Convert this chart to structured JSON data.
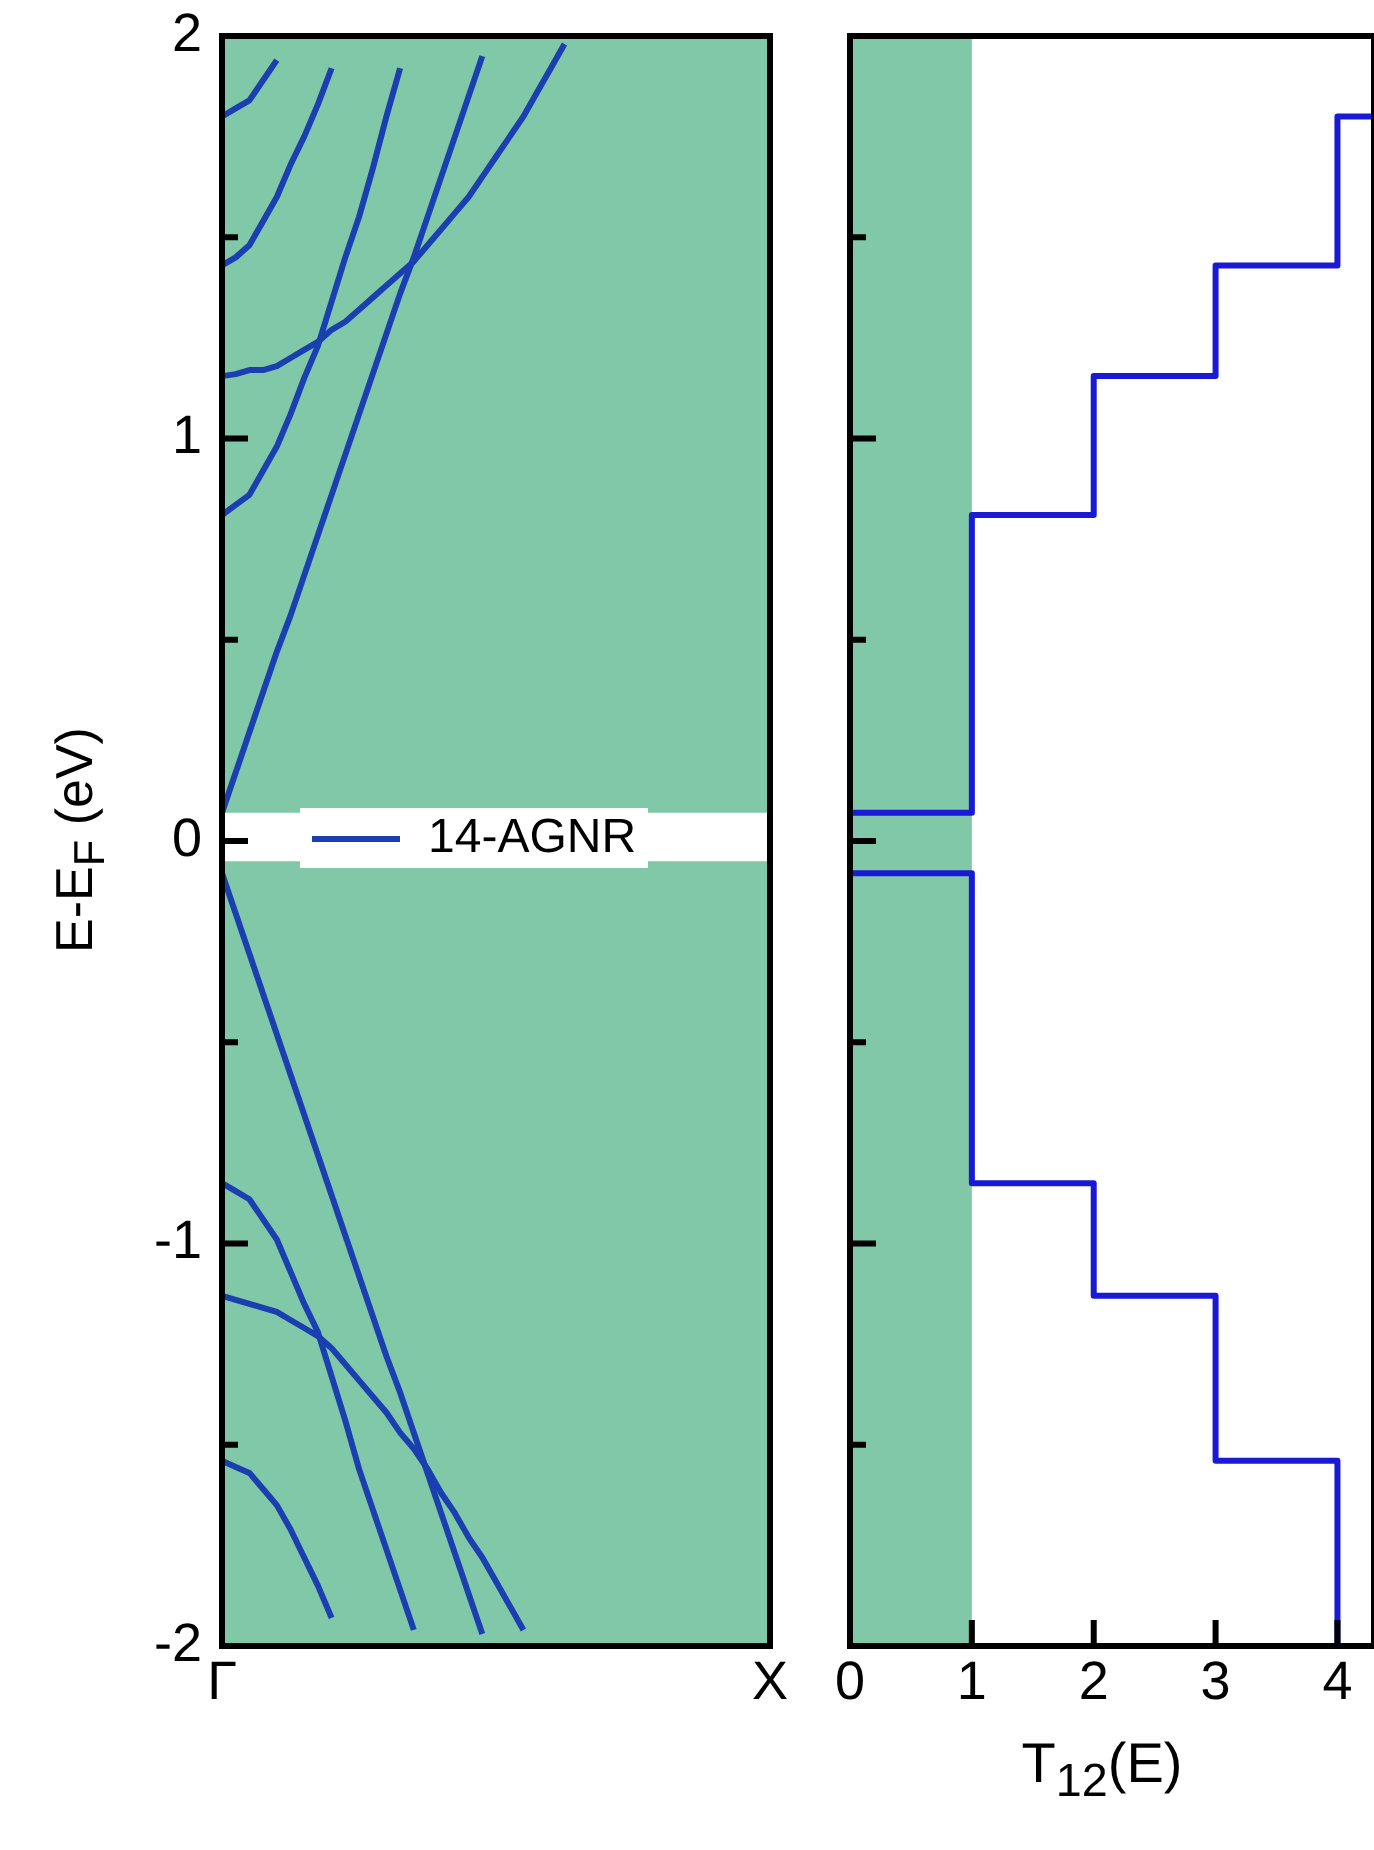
{
  "chart_data": [
    {
      "type": "line",
      "ylabel": "E-E$_{F}$ (eV)",
      "categories": [
        "Γ",
        null,
        null,
        null,
        null,
        null,
        null,
        null,
        null,
        null,
        null,
        null,
        null,
        null,
        null,
        null,
        null,
        null,
        null,
        null,
        null,
        null,
        null,
        null,
        null,
        null,
        null,
        null,
        null,
        null,
        null,
        null,
        null,
        null,
        null,
        null,
        null,
        null,
        null,
        null,
        "X"
      ],
      "ylim": [
        -2,
        2
      ],
      "yticks": [
        -2,
        {
          "value": -1.5,
          "label": null
        },
        -1,
        {
          "value": -0.5,
          "label": null
        },
        0,
        {
          "value": 0.5,
          "label": null
        },
        1,
        {
          "value": 1.5,
          "label": null
        },
        2
      ],
      "legend": "left",
      "marker": "none",
      "line_style": "solid",
      "bands": [
        {
          "axis": "y",
          "from": 0.07,
          "to": 2,
          "color": "#80c8a8"
        },
        {
          "axis": "y",
          "from": -2,
          "to": -0.05,
          "color": "#80c8a8"
        }
      ],
      "series": [
        {
          "name": "14-AGNR",
          "color": "#1a3fb0",
          "values": [
            0.07,
            0.17,
            0.27,
            0.37,
            0.47,
            0.56,
            0.66,
            0.76,
            0.86,
            0.96,
            1.06,
            1.16,
            1.26,
            1.36,
            1.45,
            1.55,
            1.65,
            1.75,
            1.85,
            1.95,
            null,
            null,
            null,
            null,
            null,
            null,
            null,
            null,
            null,
            null,
            null,
            null,
            null,
            null,
            null,
            null,
            null,
            null,
            null,
            null,
            null
          ]
        },
        {
          "color": "#1a3fb0",
          "values": [
            0.81,
            0.835,
            0.86,
            0.92,
            0.98,
            1.06,
            1.15,
            1.23,
            1.34,
            1.45,
            1.55,
            1.67,
            1.8,
            1.92,
            null,
            null,
            null,
            null,
            null,
            null,
            null,
            null,
            null,
            null,
            null,
            null,
            null,
            null,
            null,
            null,
            null,
            null,
            null,
            null,
            null,
            null,
            null,
            null,
            null,
            null,
            null
          ]
        },
        {
          "color": "#1a3fb0",
          "values": [
            1.155,
            1.16,
            1.17,
            1.17,
            1.18,
            1.2,
            1.22,
            1.24,
            1.27,
            1.29,
            1.32,
            1.35,
            1.38,
            1.41,
            1.44,
            1.48,
            1.52,
            1.56,
            1.6,
            1.65,
            1.7,
            1.75,
            1.8,
            1.86,
            1.92,
            1.98,
            null,
            null,
            null,
            null,
            null,
            null,
            null,
            null,
            null,
            null,
            null,
            null,
            null,
            null,
            null
          ]
        },
        {
          "color": "#1a3fb0",
          "values": [
            1.43,
            1.45,
            1.48,
            1.54,
            1.6,
            1.68,
            1.75,
            1.83,
            1.92,
            null,
            null,
            null,
            null,
            null,
            null,
            null,
            null,
            null,
            null,
            null,
            null,
            null,
            null,
            null,
            null,
            null,
            null,
            null,
            null,
            null,
            null,
            null,
            null,
            null,
            null,
            null,
            null,
            null,
            null,
            null,
            null
          ]
        },
        {
          "color": "#1a3fb0",
          "values": [
            1.8,
            1.82,
            1.84,
            1.89,
            1.94,
            null,
            null,
            null,
            null,
            null,
            null,
            null,
            null,
            null,
            null,
            null,
            null,
            null,
            null,
            null,
            null,
            null,
            null,
            null,
            null,
            null,
            null,
            null,
            null,
            null,
            null,
            null,
            null,
            null,
            null,
            null,
            null,
            null,
            null,
            null,
            null
          ]
        },
        {
          "color": "#1a3fb0",
          "values": [
            -0.08,
            -0.18,
            -0.28,
            -0.38,
            -0.48,
            -0.58,
            -0.68,
            -0.78,
            -0.88,
            -0.98,
            -1.08,
            -1.18,
            -1.28,
            -1.37,
            -1.47,
            -1.57,
            -1.67,
            -1.77,
            -1.87,
            -1.97,
            null,
            null,
            null,
            null,
            null,
            null,
            null,
            null,
            null,
            null,
            null,
            null,
            null,
            null,
            null,
            null,
            null,
            null,
            null,
            null,
            null
          ]
        },
        {
          "color": "#1a3fb0",
          "values": [
            -0.85,
            -0.87,
            -0.89,
            -0.94,
            -0.99,
            -1.07,
            -1.15,
            -1.22,
            -1.33,
            -1.44,
            -1.56,
            -1.66,
            -1.76,
            -1.86,
            -1.96,
            null,
            null,
            null,
            null,
            null,
            null,
            null,
            null,
            null,
            null,
            null,
            null,
            null,
            null,
            null,
            null,
            null,
            null,
            null,
            null,
            null,
            null,
            null,
            null,
            null,
            null
          ]
        },
        {
          "color": "#1a3fb0",
          "values": [
            -1.13,
            -1.14,
            -1.15,
            -1.16,
            -1.17,
            -1.19,
            -1.21,
            -1.23,
            -1.26,
            -1.3,
            -1.34,
            -1.38,
            -1.42,
            -1.47,
            -1.51,
            -1.56,
            -1.62,
            -1.67,
            -1.73,
            -1.78,
            -1.84,
            -1.9,
            -1.96,
            null,
            null,
            null,
            null,
            null,
            null,
            null,
            null,
            null,
            null,
            null,
            null,
            null,
            null,
            null,
            null,
            null,
            null
          ]
        },
        {
          "color": "#1a3fb0",
          "values": [
            -1.54,
            -1.555,
            -1.57,
            -1.61,
            -1.65,
            -1.71,
            -1.78,
            -1.85,
            -1.93,
            null,
            null,
            null,
            null,
            null,
            null,
            null,
            null,
            null,
            null,
            null,
            null,
            null,
            null,
            null,
            null,
            null,
            null,
            null,
            null,
            null,
            null,
            null,
            null,
            null,
            null,
            null,
            null,
            null,
            null,
            null,
            null
          ]
        }
      ]
    },
    {
      "type": "line",
      "xlabel": "T$_{12}$(E)",
      "xlim": [
        0,
        4.3
      ],
      "xticks": [
        0,
        1,
        2,
        3,
        4
      ],
      "ylim": [
        -2,
        2
      ],
      "yticks": [
        -2,
        {
          "value": -1.5,
          "label": null
        },
        -1,
        {
          "value": -0.5,
          "label": null
        },
        0,
        {
          "value": 0.5,
          "label": null
        },
        1,
        {
          "value": 1.5,
          "label": null
        },
        2
      ],
      "tick_labels": "x",
      "marker": "none",
      "line_style": "solid",
      "bands": [
        {
          "axis": "x",
          "from": 0,
          "to": 1,
          "color": "#80c8a8"
        }
      ],
      "series": [
        {
          "color": "#1a1ad6",
          "x": [
            0,
            1,
            1,
            2,
            2,
            3,
            3,
            4,
            4,
            4.3
          ],
          "values": [
            0.07,
            0.07,
            0.81,
            0.81,
            1.155,
            1.155,
            1.43,
            1.43,
            1.8,
            1.8
          ]
        },
        {
          "color": "#1a1ad6",
          "x": [
            0,
            1,
            1,
            2,
            2,
            3,
            3,
            4,
            4
          ],
          "values": [
            -0.08,
            -0.08,
            -0.85,
            -0.85,
            -1.13,
            -1.13,
            -1.54,
            -1.54,
            -2.0
          ]
        }
      ]
    }
  ]
}
